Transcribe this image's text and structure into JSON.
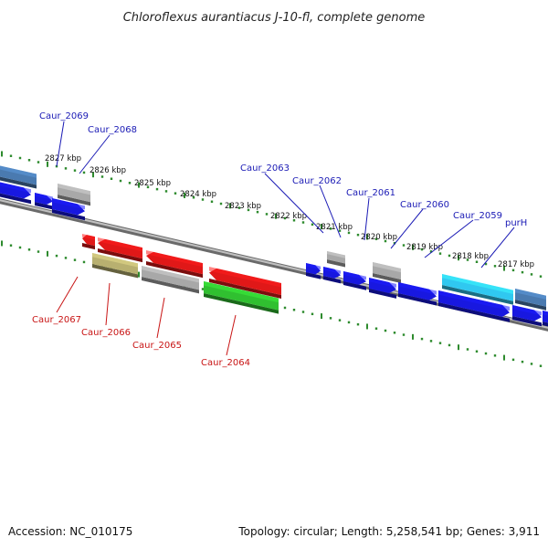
{
  "title": "Chloroflexus aurantiacus J-10-fl, complete genome",
  "footer": {
    "accession": "Accession: NC_010175",
    "info": "Topology: circular; Length: 5,258,541 bp; Genes: 3,911"
  },
  "kbp_labels": [
    "2827 kbp",
    "2826 kbp",
    "2825 kbp",
    "2824 kbp",
    "2823 kbp",
    "2822 kbp",
    "2821 kbp",
    "2820 kbp",
    "2819 kbp",
    "2818 kbp",
    "2817 kbp"
  ],
  "top_genes": [
    "Caur_2069",
    "Caur_2068",
    "Caur_2063",
    "Caur_2062",
    "Caur_2061",
    "Caur_2060",
    "Caur_2059",
    "purH"
  ],
  "bottom_genes": [
    "Caur_2067",
    "Caur_2066",
    "Caur_2065",
    "Caur_2064"
  ],
  "colors": {
    "label_top": "#1a1ab5",
    "label_bottom": "#c81414",
    "tick": "#2e8b2e",
    "backbone": "#8a8a8a",
    "blue": "#1818e0",
    "red": "#e01818",
    "gray": "#a8a8a8",
    "olive": "#b8b070",
    "green": "#30c030",
    "cyan": "#30c8f0",
    "steel": "#4a7ab0"
  }
}
